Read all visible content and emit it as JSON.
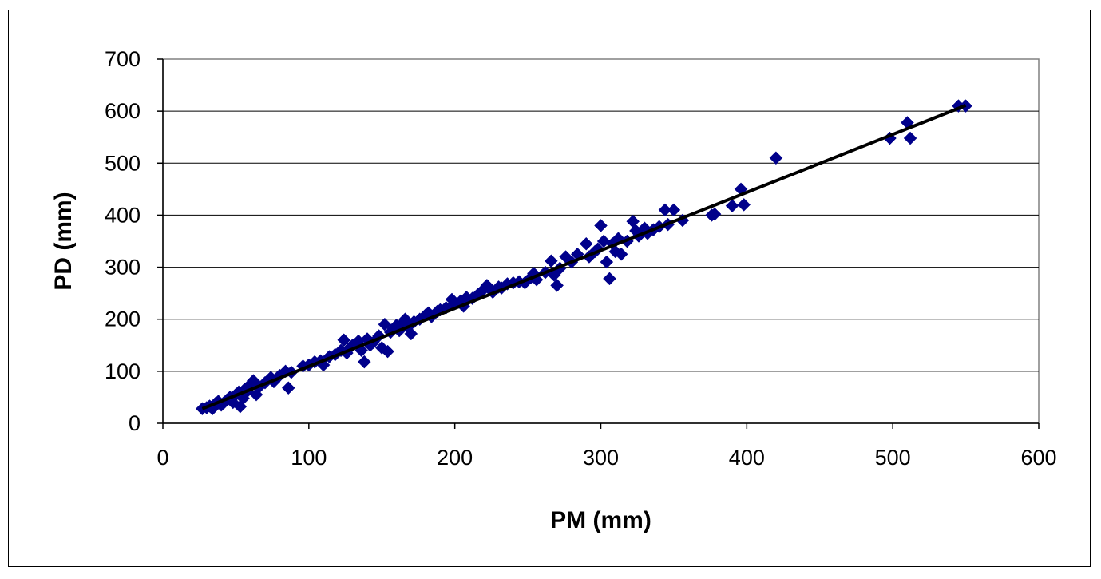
{
  "chart_data": {
    "type": "scatter",
    "title": "",
    "xlabel": "PM (mm)",
    "ylabel": "PD (mm)",
    "xlim": [
      0,
      600
    ],
    "ylim": [
      0,
      700
    ],
    "x_ticks": [
      "0",
      "100",
      "200",
      "300",
      "400",
      "500",
      "600"
    ],
    "y_ticks": [
      "0",
      "100",
      "200",
      "300",
      "400",
      "500",
      "600",
      "700"
    ],
    "grid": "horizontal",
    "legend": "none",
    "marker_color": "#00008B",
    "trendline_color": "#000000",
    "trendline": {
      "x": [
        27,
        550
      ],
      "y": [
        28,
        611
      ]
    },
    "series": [
      {
        "points": [
          [
            27,
            28
          ],
          [
            30,
            30
          ],
          [
            32,
            33
          ],
          [
            34,
            28
          ],
          [
            36,
            38
          ],
          [
            38,
            42
          ],
          [
            40,
            35
          ],
          [
            42,
            40
          ],
          [
            44,
            45
          ],
          [
            46,
            50
          ],
          [
            48,
            40
          ],
          [
            50,
            55
          ],
          [
            52,
            60
          ],
          [
            53,
            32
          ],
          [
            55,
            48
          ],
          [
            56,
            65
          ],
          [
            58,
            62
          ],
          [
            60,
            75
          ],
          [
            62,
            82
          ],
          [
            64,
            55
          ],
          [
            66,
            70
          ],
          [
            70,
            78
          ],
          [
            74,
            88
          ],
          [
            76,
            80
          ],
          [
            80,
            92
          ],
          [
            84,
            100
          ],
          [
            86,
            68
          ],
          [
            88,
            98
          ],
          [
            96,
            110
          ],
          [
            100,
            112
          ],
          [
            104,
            118
          ],
          [
            108,
            120
          ],
          [
            110,
            112
          ],
          [
            114,
            128
          ],
          [
            118,
            132
          ],
          [
            122,
            140
          ],
          [
            124,
            160
          ],
          [
            126,
            135
          ],
          [
            128,
            145
          ],
          [
            130,
            150
          ],
          [
            134,
            158
          ],
          [
            136,
            140
          ],
          [
            138,
            118
          ],
          [
            140,
            162
          ],
          [
            142,
            150
          ],
          [
            144,
            155
          ],
          [
            148,
            168
          ],
          [
            150,
            145
          ],
          [
            152,
            190
          ],
          [
            154,
            138
          ],
          [
            156,
            175
          ],
          [
            158,
            182
          ],
          [
            160,
            188
          ],
          [
            162,
            178
          ],
          [
            164,
            192
          ],
          [
            166,
            200
          ],
          [
            168,
            185
          ],
          [
            170,
            172
          ],
          [
            172,
            195
          ],
          [
            176,
            200
          ],
          [
            180,
            208
          ],
          [
            182,
            212
          ],
          [
            184,
            205
          ],
          [
            188,
            215
          ],
          [
            190,
            218
          ],
          [
            194,
            222
          ],
          [
            198,
            238
          ],
          [
            200,
            230
          ],
          [
            204,
            235
          ],
          [
            206,
            225
          ],
          [
            208,
            242
          ],
          [
            212,
            240
          ],
          [
            216,
            248
          ],
          [
            220,
            258
          ],
          [
            222,
            265
          ],
          [
            226,
            252
          ],
          [
            230,
            262
          ],
          [
            232,
            260
          ],
          [
            236,
            268
          ],
          [
            240,
            270
          ],
          [
            244,
            272
          ],
          [
            248,
            270
          ],
          [
            252,
            280
          ],
          [
            254,
            288
          ],
          [
            256,
            276
          ],
          [
            262,
            290
          ],
          [
            266,
            312
          ],
          [
            268,
            285
          ],
          [
            270,
            265
          ],
          [
            272,
            298
          ],
          [
            276,
            320
          ],
          [
            280,
            310
          ],
          [
            284,
            325
          ],
          [
            290,
            345
          ],
          [
            292,
            320
          ],
          [
            296,
            330
          ],
          [
            298,
            335
          ],
          [
            300,
            380
          ],
          [
            302,
            350
          ],
          [
            304,
            310
          ],
          [
            306,
            278
          ],
          [
            308,
            345
          ],
          [
            310,
            330
          ],
          [
            312,
            355
          ],
          [
            314,
            325
          ],
          [
            318,
            350
          ],
          [
            322,
            388
          ],
          [
            324,
            370
          ],
          [
            326,
            360
          ],
          [
            330,
            375
          ],
          [
            332,
            365
          ],
          [
            336,
            372
          ],
          [
            340,
            378
          ],
          [
            344,
            410
          ],
          [
            346,
            382
          ],
          [
            350,
            410
          ],
          [
            356,
            390
          ],
          [
            376,
            400
          ],
          [
            378,
            402
          ],
          [
            390,
            418
          ],
          [
            396,
            450
          ],
          [
            398,
            420
          ],
          [
            420,
            510
          ],
          [
            498,
            548
          ],
          [
            510,
            578
          ],
          [
            512,
            548
          ],
          [
            545,
            610
          ],
          [
            550,
            610
          ]
        ]
      }
    ]
  }
}
